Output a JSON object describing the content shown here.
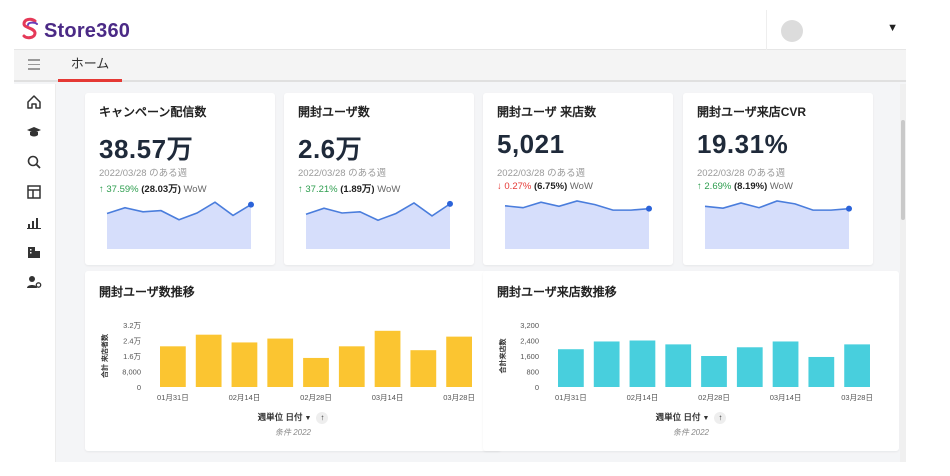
{
  "app": {
    "name": "Store360"
  },
  "tabs": [
    {
      "label": "ホーム"
    }
  ],
  "kpis": [
    {
      "title": "キャンペーン配信数",
      "value": "38.57万",
      "period": "2022/03/28 のある週",
      "direction": "up",
      "change_pct": "37.59%",
      "change_abs": "(28.03万)",
      "change_unit": "WoW",
      "trend": [
        0.48,
        0.72,
        0.55,
        0.6,
        0.22,
        0.5,
        0.95,
        0.4,
        0.85
      ]
    },
    {
      "title": "開封ユーザ数",
      "value": "2.6万",
      "period": "2022/03/28 のある週",
      "direction": "up",
      "change_pct": "37.21%",
      "change_abs": "(1.89万)",
      "change_unit": "WoW",
      "trend": [
        0.45,
        0.7,
        0.5,
        0.55,
        0.2,
        0.48,
        0.92,
        0.38,
        0.88
      ]
    },
    {
      "title": "開封ユーザ 来店数",
      "value": "5,021",
      "period": "2022/03/28 のある週",
      "direction": "down",
      "change_pct": "0.27%",
      "change_abs": "(6.75%)",
      "change_unit": "WoW",
      "trend": [
        0.8,
        0.72,
        0.95,
        0.78,
        1.0,
        0.85,
        0.62,
        0.62,
        0.68
      ]
    },
    {
      "title": "開封ユーザ来店CVR",
      "value": "19.31%",
      "period": "2022/03/28 のある週",
      "direction": "up",
      "change_pct": "2.69%",
      "change_abs": "(8.19%)",
      "change_unit": "WoW",
      "trend": [
        0.78,
        0.7,
        0.92,
        0.72,
        1.0,
        0.88,
        0.62,
        0.62,
        0.68
      ]
    }
  ],
  "charts": [
    {
      "title": "開封ユーザ数推移",
      "ylabel": "合計 来店者数",
      "color": "#fbc531",
      "yticks": [
        "3.2万",
        "2.4万",
        "1.6万",
        "8,000",
        "0"
      ],
      "xticks": [
        "01月31日",
        "02月14日",
        "02月28日",
        "03月14日",
        "03月28日"
      ],
      "footer_sort": "週単位 日付",
      "footer_caption": "条件 2022",
      "chart_data": {
        "type": "bar",
        "title": "開封ユーザ数推移",
        "ylabel": "合計 来店者数",
        "ylim": [
          0,
          32000
        ],
        "x": [
          "01月31日",
          "02月07日",
          "02月14日",
          "02月21日",
          "02月28日",
          "03月07日",
          "03月14日",
          "03月21日",
          "03月28日"
        ],
        "values": [
          21000,
          27000,
          23000,
          25000,
          15000,
          21000,
          29000,
          19000,
          26000
        ]
      }
    },
    {
      "title": "開封ユーザ来店数推移",
      "ylabel": "合計来店数",
      "color": "#48cfdd",
      "yticks": [
        "3,200",
        "2,400",
        "1,600",
        "800",
        "0"
      ],
      "xticks": [
        "01月31日",
        "02月14日",
        "02月28日",
        "03月14日",
        "03月28日"
      ],
      "footer_sort": "週単位 日付",
      "footer_caption": "条件 2022",
      "chart_data": {
        "type": "bar",
        "title": "開封ユーザ来店数推移",
        "ylabel": "合計来店数",
        "ylim": [
          0,
          3200
        ],
        "x": [
          "01月31日",
          "02月07日",
          "02月14日",
          "02月21日",
          "02月28日",
          "03月07日",
          "03月14日",
          "03月21日",
          "03月28日"
        ],
        "values": [
          1950,
          2350,
          2400,
          2200,
          1600,
          2050,
          2350,
          1550,
          2200
        ]
      }
    }
  ],
  "icons": [
    "home-icon",
    "graduation-cap-icon",
    "search-icon",
    "layout-icon",
    "bar-chart-icon",
    "building-icon",
    "user-settings-icon"
  ]
}
